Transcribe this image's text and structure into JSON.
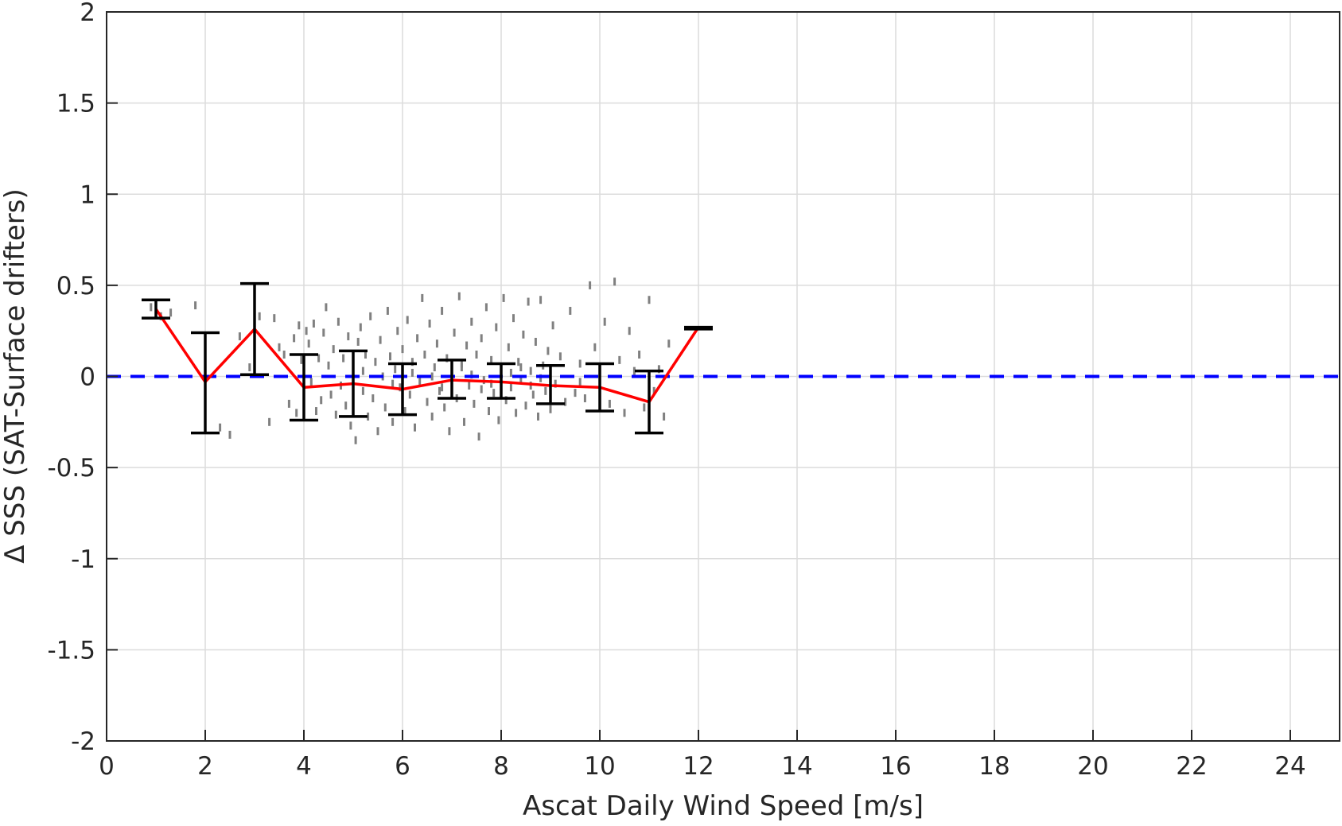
{
  "chart_data": {
    "type": "scatter",
    "xlabel": "Ascat Daily Wind Speed [m/s]",
    "ylabel": "Δ SSS (SAT-Surface drifters)",
    "xlim": [
      0,
      25
    ],
    "ylim": [
      -2,
      2
    ],
    "xticks": [
      0,
      2,
      4,
      6,
      8,
      10,
      12,
      14,
      16,
      18,
      20,
      22,
      24
    ],
    "yticks": [
      -2,
      -1.5,
      -1,
      -0.5,
      0,
      0.5,
      1,
      1.5,
      2
    ],
    "ytick_labels": [
      "-2",
      "-1.5",
      "-1",
      "-0.5",
      "0",
      "0.5",
      "1",
      "1.5",
      "2"
    ],
    "grid": true,
    "reference_line": {
      "y": 0,
      "style": "dashed",
      "color": "#0000ff"
    },
    "mean_line": {
      "color": "#ff0000",
      "x": [
        1,
        2,
        3,
        4,
        5,
        6,
        7,
        8,
        9,
        10,
        11,
        12
      ],
      "y": [
        0.37,
        -0.03,
        0.26,
        -0.06,
        -0.04,
        -0.07,
        -0.02,
        -0.03,
        -0.05,
        -0.06,
        -0.14,
        0.27
      ]
    },
    "error_bars": {
      "color": "#000000",
      "x": [
        1,
        2,
        3,
        4,
        5,
        6,
        7,
        8,
        9,
        10,
        11,
        12
      ],
      "lower": [
        0.32,
        -0.31,
        0.01,
        -0.24,
        -0.22,
        -0.21,
        -0.12,
        -0.12,
        -0.15,
        -0.19,
        -0.31,
        0.26
      ],
      "upper": [
        0.42,
        0.24,
        0.51,
        0.12,
        0.14,
        0.07,
        0.09,
        0.07,
        0.06,
        0.07,
        0.03,
        0.27
      ]
    },
    "scatter_color": "#808080",
    "scatter_points": [
      [
        0.9,
        0.38
      ],
      [
        1.1,
        0.33
      ],
      [
        1.3,
        0.35
      ],
      [
        1.8,
        0.39
      ],
      [
        2.3,
        -0.28
      ],
      [
        2.5,
        -0.32
      ],
      [
        2.7,
        0.22
      ],
      [
        2.9,
        0.05
      ],
      [
        3.1,
        0.33
      ],
      [
        3.3,
        -0.25
      ],
      [
        3.4,
        0.32
      ],
      [
        3.5,
        0.16
      ],
      [
        3.6,
        0.12
      ],
      [
        3.7,
        -0.15
      ],
      [
        3.8,
        0.21
      ],
      [
        3.85,
        -0.2
      ],
      [
        3.9,
        0.28
      ],
      [
        3.95,
        0.09
      ],
      [
        4.0,
        -0.09
      ],
      [
        4.05,
        0.25
      ],
      [
        4.1,
        0.18
      ],
      [
        4.15,
        -0.03
      ],
      [
        4.2,
        0.29
      ],
      [
        4.25,
        -0.19
      ],
      [
        4.3,
        0.1
      ],
      [
        4.35,
        -0.13
      ],
      [
        4.4,
        0.24
      ],
      [
        4.45,
        0.38
      ],
      [
        4.5,
        0.06
      ],
      [
        4.55,
        -0.1
      ],
      [
        4.6,
        0.15
      ],
      [
        4.65,
        -0.21
      ],
      [
        4.7,
        0.3
      ],
      [
        4.75,
        -0.05
      ],
      [
        4.8,
        0.1
      ],
      [
        4.85,
        -0.16
      ],
      [
        4.9,
        0.22
      ],
      [
        4.95,
        -0.27
      ],
      [
        5.0,
        0.04
      ],
      [
        5.05,
        -0.35
      ],
      [
        5.1,
        0.19
      ],
      [
        5.15,
        0.27
      ],
      [
        5.2,
        -0.08
      ],
      [
        5.25,
        0.12
      ],
      [
        5.3,
        -0.22
      ],
      [
        5.35,
        0.33
      ],
      [
        5.4,
        -0.12
      ],
      [
        5.45,
        0.08
      ],
      [
        5.5,
        -0.3
      ],
      [
        5.55,
        0.2
      ],
      [
        5.6,
        0.0
      ],
      [
        5.65,
        -0.17
      ],
      [
        5.7,
        0.36
      ],
      [
        5.75,
        0.11
      ],
      [
        5.8,
        -0.25
      ],
      [
        5.85,
        0.04
      ],
      [
        5.9,
        0.25
      ],
      [
        5.95,
        -0.06
      ],
      [
        6.0,
        0.15
      ],
      [
        6.05,
        -0.19
      ],
      [
        6.1,
        0.31
      ],
      [
        6.15,
        -0.1
      ],
      [
        6.2,
        0.08
      ],
      [
        6.25,
        -0.28
      ],
      [
        6.3,
        0.21
      ],
      [
        6.35,
        -0.03
      ],
      [
        6.4,
        0.43
      ],
      [
        6.45,
        0.12
      ],
      [
        6.5,
        -0.14
      ],
      [
        6.55,
        0.29
      ],
      [
        6.6,
        -0.22
      ],
      [
        6.65,
        0.05
      ],
      [
        6.7,
        0.18
      ],
      [
        6.75,
        -0.08
      ],
      [
        6.8,
        0.36
      ],
      [
        6.85,
        -0.17
      ],
      [
        6.9,
        0.1
      ],
      [
        6.95,
        -0.3
      ],
      [
        7.0,
        0.02
      ],
      [
        7.05,
        0.24
      ],
      [
        7.1,
        -0.12
      ],
      [
        7.15,
        0.44
      ],
      [
        7.2,
        0.07
      ],
      [
        7.25,
        -0.25
      ],
      [
        7.3,
        0.17
      ],
      [
        7.35,
        -0.05
      ],
      [
        7.4,
        0.3
      ],
      [
        7.45,
        -0.15
      ],
      [
        7.5,
        0.12
      ],
      [
        7.55,
        -0.33
      ],
      [
        7.6,
        0.21
      ],
      [
        7.65,
        -0.02
      ],
      [
        7.7,
        0.38
      ],
      [
        7.75,
        -0.19
      ],
      [
        7.8,
        0.09
      ],
      [
        7.85,
        -0.09
      ],
      [
        7.9,
        0.27
      ],
      [
        7.95,
        -0.24
      ],
      [
        8.0,
        0.04
      ],
      [
        8.05,
        0.43
      ],
      [
        8.1,
        -0.13
      ],
      [
        8.15,
        0.16
      ],
      [
        8.2,
        -0.06
      ],
      [
        8.25,
        0.32
      ],
      [
        8.3,
        -0.2
      ],
      [
        8.35,
        0.08
      ],
      [
        8.4,
        -0.02
      ],
      [
        8.45,
        0.23
      ],
      [
        8.5,
        -0.16
      ],
      [
        8.55,
        0.41
      ],
      [
        8.6,
        0.03
      ],
      [
        8.65,
        -0.1
      ],
      [
        8.7,
        0.19
      ],
      [
        8.75,
        -0.22
      ],
      [
        8.8,
        0.42
      ],
      [
        8.85,
        0.06
      ],
      [
        8.9,
        -0.08
      ],
      [
        8.95,
        0.14
      ],
      [
        9.0,
        -0.18
      ],
      [
        9.05,
        0.28
      ],
      [
        9.1,
        -0.04
      ],
      [
        9.2,
        0.11
      ],
      [
        9.3,
        -0.14
      ],
      [
        9.4,
        0.36
      ],
      [
        9.5,
        -0.09
      ],
      [
        9.6,
        0.07
      ],
      [
        9.7,
        -0.12
      ],
      [
        9.8,
        0.5
      ],
      [
        9.9,
        0.16
      ],
      [
        10.0,
        -0.05
      ],
      [
        10.1,
        0.3
      ],
      [
        10.2,
        -0.15
      ],
      [
        10.3,
        0.52
      ],
      [
        10.4,
        0.09
      ],
      [
        10.5,
        -0.2
      ],
      [
        10.6,
        0.25
      ],
      [
        10.7,
        0.03
      ],
      [
        10.8,
        0.12
      ],
      [
        10.9,
        -0.17
      ],
      [
        11.0,
        0.42
      ],
      [
        11.1,
        -0.08
      ],
      [
        11.2,
        0.04
      ],
      [
        11.3,
        -0.22
      ],
      [
        11.4,
        0.18
      ],
      [
        6.2,
        0.02
      ],
      [
        6.6,
        0.0
      ],
      [
        7.0,
        -0.03
      ],
      [
        7.4,
        0.01
      ],
      [
        7.8,
        -0.04
      ],
      [
        8.2,
        0.02
      ],
      [
        8.6,
        -0.05
      ],
      [
        9.0,
        0.01
      ],
      [
        5.2,
        0.03
      ],
      [
        5.8,
        -0.04
      ],
      [
        6.8,
        -0.06
      ],
      [
        7.2,
        0.05
      ],
      [
        7.6,
        -0.07
      ],
      [
        8.4,
        0.05
      ],
      [
        8.8,
        -0.01
      ],
      [
        9.6,
        -0.03
      ]
    ]
  }
}
